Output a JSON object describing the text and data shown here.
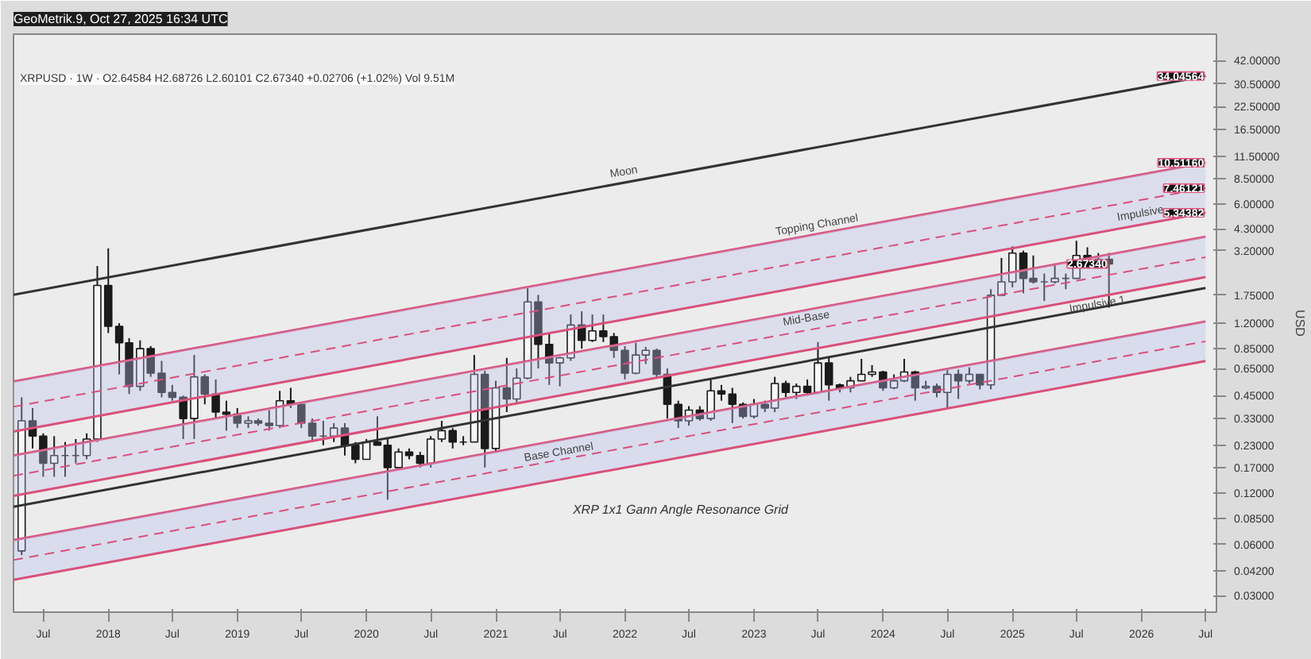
{
  "chart_data": {
    "type": "candlestick",
    "title": "GeoMetrik.9, Oct 27, 2025 16:34 UTC",
    "subtitle": "XRPUSD · 1W · O2.64584 H2.68726 L2.60101 C2.67340 +0.02706 (+1.02%) Vol 9.51M",
    "ylabel": "USD",
    "log": "y",
    "grid": false,
    "xlim": [
      "2017-04-08",
      "2026-08-01"
    ],
    "ylim": [
      0.024,
      60
    ],
    "xticks": [
      {
        "value": "2017-07",
        "label": "Jul"
      },
      {
        "value": "2018-01",
        "label": "2018"
      },
      {
        "value": "2018-07",
        "label": "Jul"
      },
      {
        "value": "2019-01",
        "label": "2019"
      },
      {
        "value": "2019-07",
        "label": "Jul"
      },
      {
        "value": "2020-01",
        "label": "2020"
      },
      {
        "value": "2020-07",
        "label": "Jul"
      },
      {
        "value": "2021-01",
        "label": "2021"
      },
      {
        "value": "2021-07",
        "label": "Jul"
      },
      {
        "value": "2022-01",
        "label": "2022"
      },
      {
        "value": "2022-07",
        "label": "Jul"
      },
      {
        "value": "2023-01",
        "label": "2023"
      },
      {
        "value": "2023-07",
        "label": "Jul"
      },
      {
        "value": "2024-01",
        "label": "2024"
      },
      {
        "value": "2024-07",
        "label": "Jul"
      },
      {
        "value": "2025-01",
        "label": "2025"
      },
      {
        "value": "2025-07",
        "label": "Jul"
      },
      {
        "value": "2026-01",
        "label": "2026"
      },
      {
        "value": "2026-07",
        "label": "Jul"
      }
    ],
    "yticks": [
      {
        "value": 42,
        "label": "42.00000"
      },
      {
        "value": 30.5,
        "label": "30.50000"
      },
      {
        "value": 22.5,
        "label": "22.50000"
      },
      {
        "value": 16.5,
        "label": "16.50000"
      },
      {
        "value": 11.5,
        "label": "11.50000"
      },
      {
        "value": 8.5,
        "label": "8.50000"
      },
      {
        "value": 6,
        "label": "6.00000"
      },
      {
        "value": 4.3,
        "label": "4.30000"
      },
      {
        "value": 3.2,
        "label": "3.20000"
      },
      {
        "value": 1.75,
        "label": "1.75000"
      },
      {
        "value": 1.2,
        "label": "1.20000"
      },
      {
        "value": 0.85,
        "label": "0.85000"
      },
      {
        "value": 0.65,
        "label": "0.65000"
      },
      {
        "value": 0.45,
        "label": "0.45000"
      },
      {
        "value": 0.33,
        "label": "0.33000"
      },
      {
        "value": 0.23,
        "label": "0.23000"
      },
      {
        "value": 0.17,
        "label": "0.17000"
      },
      {
        "value": 0.12,
        "label": "0.12000"
      },
      {
        "value": 0.085,
        "label": "0.08500"
      },
      {
        "value": 0.06,
        "label": "0.06000"
      },
      {
        "value": 0.042,
        "label": "0.04200"
      },
      {
        "value": 0.03,
        "label": "0.03000"
      }
    ],
    "x": [
      "2017-05",
      "2017-06",
      "2017-07",
      "2017-08",
      "2017-09",
      "2017-10",
      "2017-11",
      "2017-12",
      "2018-01",
      "2018-02",
      "2018-03",
      "2018-04",
      "2018-05",
      "2018-06",
      "2018-07",
      "2018-08",
      "2018-09",
      "2018-10",
      "2018-11",
      "2018-12",
      "2019-01",
      "2019-02",
      "2019-03",
      "2019-04",
      "2019-05",
      "2019-06",
      "2019-07",
      "2019-08",
      "2019-09",
      "2019-10",
      "2019-11",
      "2019-12",
      "2020-01",
      "2020-02",
      "2020-03",
      "2020-04",
      "2020-05",
      "2020-06",
      "2020-07",
      "2020-08",
      "2020-09",
      "2020-10",
      "2020-11",
      "2020-12",
      "2021-01",
      "2021-02",
      "2021-03",
      "2021-04",
      "2021-05",
      "2021-06",
      "2021-07",
      "2021-08",
      "2021-09",
      "2021-10",
      "2021-11",
      "2021-12",
      "2022-01",
      "2022-02",
      "2022-03",
      "2022-04",
      "2022-05",
      "2022-06",
      "2022-07",
      "2022-08",
      "2022-09",
      "2022-10",
      "2022-11",
      "2022-12",
      "2023-01",
      "2023-02",
      "2023-03",
      "2023-04",
      "2023-05",
      "2023-06",
      "2023-07",
      "2023-08",
      "2023-09",
      "2023-10",
      "2023-11",
      "2023-12",
      "2024-01",
      "2024-02",
      "2024-03",
      "2024-04",
      "2024-05",
      "2024-06",
      "2024-07",
      "2024-08",
      "2024-09",
      "2024-10",
      "2024-11",
      "2024-12",
      "2025-01",
      "2025-02",
      "2025-03",
      "2025-04",
      "2025-05",
      "2025-06",
      "2025-07",
      "2025-08",
      "2025-09",
      "2025-10"
    ],
    "ohlc": [
      [
        0.055,
        0.44,
        0.052,
        0.32
      ],
      [
        0.32,
        0.38,
        0.22,
        0.26
      ],
      [
        0.26,
        0.27,
        0.15,
        0.18
      ],
      [
        0.18,
        0.26,
        0.15,
        0.2
      ],
      [
        0.2,
        0.24,
        0.15,
        0.2
      ],
      [
        0.2,
        0.25,
        0.18,
        0.2
      ],
      [
        0.2,
        0.27,
        0.19,
        0.25
      ],
      [
        0.25,
        2.6,
        0.24,
        2.0
      ],
      [
        2.0,
        3.3,
        1.05,
        1.15
      ],
      [
        1.15,
        1.2,
        0.6,
        0.92
      ],
      [
        0.92,
        0.98,
        0.46,
        0.51
      ],
      [
        0.51,
        0.95,
        0.48,
        0.85
      ],
      [
        0.85,
        0.88,
        0.58,
        0.61
      ],
      [
        0.61,
        0.72,
        0.44,
        0.47
      ],
      [
        0.47,
        0.52,
        0.42,
        0.44
      ],
      [
        0.44,
        0.45,
        0.25,
        0.33
      ],
      [
        0.33,
        0.78,
        0.25,
        0.58
      ],
      [
        0.58,
        0.6,
        0.4,
        0.46
      ],
      [
        0.46,
        0.56,
        0.33,
        0.36
      ],
      [
        0.36,
        0.42,
        0.28,
        0.35
      ],
      [
        0.35,
        0.38,
        0.29,
        0.31
      ],
      [
        0.31,
        0.34,
        0.29,
        0.32
      ],
      [
        0.32,
        0.33,
        0.3,
        0.31
      ],
      [
        0.31,
        0.37,
        0.28,
        0.3
      ],
      [
        0.3,
        0.48,
        0.29,
        0.42
      ],
      [
        0.42,
        0.5,
        0.38,
        0.4
      ],
      [
        0.4,
        0.41,
        0.29,
        0.31
      ],
      [
        0.31,
        0.33,
        0.24,
        0.26
      ],
      [
        0.26,
        0.32,
        0.23,
        0.26
      ],
      [
        0.26,
        0.31,
        0.24,
        0.29
      ],
      [
        0.29,
        0.31,
        0.2,
        0.23
      ],
      [
        0.23,
        0.24,
        0.18,
        0.19
      ],
      [
        0.19,
        0.25,
        0.19,
        0.24
      ],
      [
        0.24,
        0.34,
        0.23,
        0.23
      ],
      [
        0.23,
        0.25,
        0.11,
        0.17
      ],
      [
        0.17,
        0.22,
        0.17,
        0.21
      ],
      [
        0.21,
        0.22,
        0.19,
        0.2
      ],
      [
        0.2,
        0.21,
        0.17,
        0.18
      ],
      [
        0.18,
        0.26,
        0.17,
        0.25
      ],
      [
        0.25,
        0.32,
        0.24,
        0.28
      ],
      [
        0.28,
        0.29,
        0.22,
        0.24
      ],
      [
        0.24,
        0.26,
        0.23,
        0.24
      ],
      [
        0.24,
        0.78,
        0.24,
        0.6
      ],
      [
        0.6,
        0.63,
        0.17,
        0.22
      ],
      [
        0.22,
        0.55,
        0.21,
        0.5
      ],
      [
        0.5,
        0.75,
        0.36,
        0.43
      ],
      [
        0.43,
        0.65,
        0.41,
        0.57
      ],
      [
        0.57,
        1.96,
        0.56,
        1.6
      ],
      [
        1.6,
        1.76,
        0.65,
        0.9
      ],
      [
        0.9,
        1.04,
        0.52,
        0.7
      ],
      [
        0.7,
        0.76,
        0.51,
        0.75
      ],
      [
        0.75,
        1.35,
        0.72,
        1.17
      ],
      [
        1.17,
        1.41,
        0.85,
        0.95
      ],
      [
        0.95,
        1.35,
        0.93,
        1.08
      ],
      [
        1.08,
        1.35,
        0.93,
        1.0
      ],
      [
        1.0,
        1.05,
        0.75,
        0.83
      ],
      [
        0.83,
        0.88,
        0.56,
        0.61
      ],
      [
        0.61,
        0.92,
        0.6,
        0.78
      ],
      [
        0.78,
        0.87,
        0.69,
        0.83
      ],
      [
        0.83,
        0.85,
        0.58,
        0.6
      ],
      [
        0.6,
        0.65,
        0.33,
        0.4
      ],
      [
        0.4,
        0.42,
        0.29,
        0.32
      ],
      [
        0.32,
        0.39,
        0.3,
        0.37
      ],
      [
        0.37,
        0.39,
        0.32,
        0.33
      ],
      [
        0.33,
        0.56,
        0.32,
        0.48
      ],
      [
        0.48,
        0.52,
        0.42,
        0.46
      ],
      [
        0.46,
        0.5,
        0.31,
        0.4
      ],
      [
        0.4,
        0.41,
        0.33,
        0.34
      ],
      [
        0.34,
        0.43,
        0.33,
        0.4
      ],
      [
        0.4,
        0.42,
        0.36,
        0.38
      ],
      [
        0.38,
        0.58,
        0.36,
        0.53
      ],
      [
        0.53,
        0.55,
        0.44,
        0.47
      ],
      [
        0.47,
        0.53,
        0.43,
        0.51
      ],
      [
        0.51,
        0.56,
        0.45,
        0.47
      ],
      [
        0.47,
        0.93,
        0.46,
        0.7
      ],
      [
        0.7,
        0.75,
        0.42,
        0.52
      ],
      [
        0.52,
        0.53,
        0.47,
        0.5
      ],
      [
        0.5,
        0.58,
        0.47,
        0.55
      ],
      [
        0.55,
        0.74,
        0.55,
        0.6
      ],
      [
        0.6,
        0.68,
        0.58,
        0.62
      ],
      [
        0.62,
        0.63,
        0.48,
        0.5
      ],
      [
        0.5,
        0.6,
        0.49,
        0.55
      ],
      [
        0.55,
        0.74,
        0.54,
        0.62
      ],
      [
        0.62,
        0.63,
        0.42,
        0.5
      ],
      [
        0.5,
        0.55,
        0.49,
        0.51
      ],
      [
        0.51,
        0.53,
        0.44,
        0.47
      ],
      [
        0.47,
        0.65,
        0.38,
        0.6
      ],
      [
        0.6,
        0.64,
        0.43,
        0.55
      ],
      [
        0.55,
        0.66,
        0.53,
        0.6
      ],
      [
        0.6,
        0.6,
        0.49,
        0.52
      ],
      [
        0.52,
        1.9,
        0.49,
        1.75
      ],
      [
        1.75,
        2.9,
        1.75,
        2.1
      ],
      [
        2.1,
        3.4,
        1.95,
        3.1
      ],
      [
        3.1,
        3.2,
        1.8,
        2.2
      ],
      [
        2.2,
        3.0,
        2.05,
        2.1
      ],
      [
        2.1,
        2.35,
        1.62,
        2.1
      ],
      [
        2.1,
        2.65,
        2.05,
        2.2
      ],
      [
        2.2,
        2.35,
        1.9,
        2.2
      ],
      [
        2.2,
        3.66,
        2.2,
        3.0
      ],
      [
        3.0,
        3.35,
        2.7,
        2.85
      ],
      [
        2.85,
        3.1,
        2.7,
        2.85
      ],
      [
        2.85,
        3.1,
        1.48,
        2.6734
      ]
    ],
    "series": [
      {
        "type": "line",
        "color": "#333333",
        "x": [
          "2017-04-08",
          "2026-07"
        ],
        "values": [
          1.764,
          34.04564
        ]
      },
      {
        "type": "line",
        "color": "#d9507a",
        "x": [
          "2017-04-08",
          "2026-07"
        ],
        "values": [
          0.545,
          10.5116
        ]
      },
      {
        "type": "line",
        "line_style": "dashed",
        "color": "#d9507a",
        "x": [
          "2017-04-08",
          "2026-07"
        ],
        "values": [
          0.387,
          7.46121
        ],
        "lower": [
          0.277,
          5.34382
        ],
        "upper": [
          0.545,
          10.5116
        ]
      },
      {
        "type": "line",
        "color": "#d9507a",
        "x": [
          "2017-04-08",
          "2026-07"
        ],
        "values": [
          0.277,
          5.34382
        ]
      },
      {
        "type": "line",
        "color": "#d9507a",
        "x": [
          "2017-04-08",
          "2026-07"
        ],
        "values": [
          0.2,
          3.86
        ]
      },
      {
        "type": "line",
        "line_style": "dashed",
        "color": "#d9507a",
        "x": [
          "2017-04-08",
          "2026-07"
        ],
        "values": [
          0.152,
          2.93
        ],
        "lower": [
          0.116,
          2.24
        ],
        "upper": [
          0.2,
          3.86
        ]
      },
      {
        "type": "line",
        "color": "#d9507a",
        "x": [
          "2017-04-08",
          "2026-07"
        ],
        "values": [
          0.116,
          2.24
        ]
      },
      {
        "type": "line",
        "color": "#333333",
        "x": [
          "2017-04-08",
          "2026-07"
        ],
        "values": [
          0.1,
          1.93
        ]
      },
      {
        "type": "line",
        "color": "#d9507a",
        "x": [
          "2017-04-08",
          "2026-07"
        ],
        "values": [
          0.0636,
          1.227
        ]
      },
      {
        "type": "line",
        "line_style": "dashed",
        "color": "#d9507a",
        "x": [
          "2017-04-08",
          "2026-07"
        ],
        "values": [
          0.0486,
          0.938
        ],
        "lower": [
          0.0372,
          0.718
        ],
        "upper": [
          0.0636,
          1.227
        ]
      },
      {
        "type": "line",
        "color": "#d9507a",
        "x": [
          "2017-04-08",
          "2026-07"
        ],
        "values": [
          0.0372,
          0.718
        ]
      }
    ],
    "annotations": [
      {
        "text": "Moon",
        "x": "2022-01",
        "y": 8.0
      },
      {
        "text": "Topping Channel",
        "x": "2023-07",
        "y": 3.9
      },
      {
        "text": "Mid-Base",
        "x": "2023-06",
        "y": 1.1
      },
      {
        "text": "Base Channel",
        "x": "2021-07",
        "y": 0.18
      },
      {
        "text": "Impulsive 1",
        "x": "2025-09",
        "y": 1.33
      },
      {
        "text": "Impulsive",
        "x": "2026-01",
        "y": 4.55
      },
      {
        "text": "34.04564",
        "x": "2026-07",
        "y": 34.04564
      },
      {
        "text": "10.51160",
        "x": "2026-07",
        "y": 10.5116
      },
      {
        "text": "7.46121",
        "x": "2026-07",
        "y": 7.46121
      },
      {
        "text": "5.34382",
        "x": "2026-07",
        "y": 5.34382
      },
      {
        "text": "2.67340",
        "x": "2025-10",
        "y": 2.6734
      },
      "XRP 1x1 Gann Angle Resonance Grid"
    ]
  }
}
